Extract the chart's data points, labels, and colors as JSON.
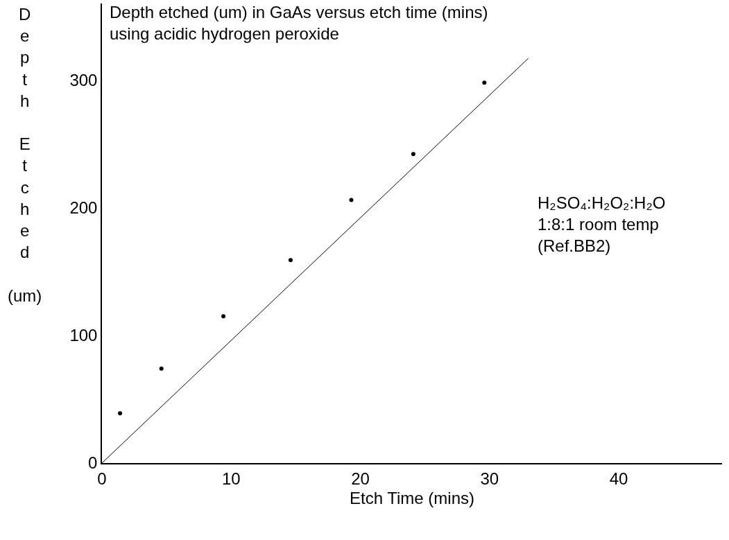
{
  "chart_data": {
    "type": "scatter",
    "title": "Depth etched (um) in GaAs versus etch time (mins)\nusing acidic hydrogen peroxide",
    "xlabel": "Etch Time (mins)",
    "ylabel": "Depth Etched (um)",
    "series": [
      {
        "color": "#000000",
        "marker": "circle",
        "x": [
          1.4,
          4.6,
          9.4,
          14.6,
          19.3,
          24.1,
          29.6
        ],
        "values": [
          39,
          74,
          115,
          159,
          206,
          242,
          298
        ]
      },
      {
        "type": "line",
        "color": "#000000",
        "marker": "none",
        "line_style": "solid",
        "x": [
          0,
          33
        ],
        "values": [
          0,
          317
        ]
      }
    ],
    "annotations": [
      "H₂SO₄:H₂O₂:H₂O\n1:8:1 room temp\n(Ref.BB2)"
    ],
    "xlim": [
      0,
      48
    ],
    "xticks": [
      0,
      10,
      20,
      30,
      40
    ],
    "ylim": [
      0,
      360
    ],
    "yticks": [
      0,
      100,
      200,
      300
    ]
  }
}
